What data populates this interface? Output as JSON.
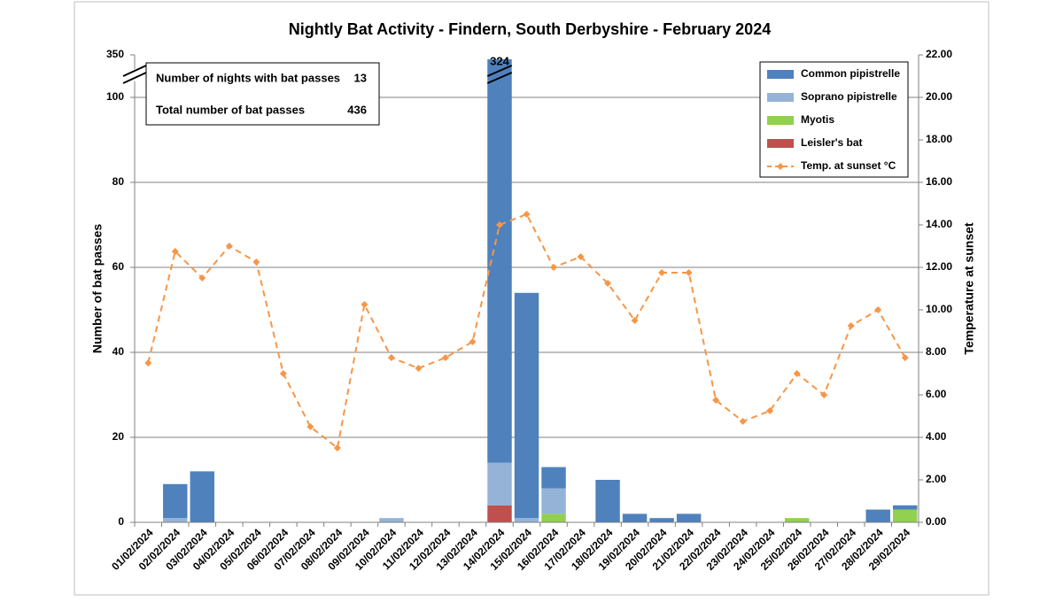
{
  "chart_data": {
    "type": "bar",
    "stacked": true,
    "title": "Nightly Bat Activity - Findern, South Derbyshire - February 2024",
    "y_label": "Number of bat passes",
    "y2_label": "Temperature at sunset",
    "categories": [
      "01/02/2024",
      "02/02/2024",
      "03/02/2024",
      "04/02/2024",
      "05/02/2024",
      "06/02/2024",
      "07/02/2024",
      "08/02/2024",
      "09/02/2024",
      "10/02/2024",
      "11/02/2024",
      "12/02/2024",
      "13/02/2024",
      "14/02/2024",
      "15/02/2024",
      "16/02/2024",
      "17/02/2024",
      "18/02/2024",
      "19/02/2024",
      "20/02/2024",
      "21/02/2024",
      "22/02/2024",
      "23/02/2024",
      "24/02/2024",
      "25/02/2024",
      "26/02/2024",
      "27/02/2024",
      "28/02/2024",
      "29/02/2024"
    ],
    "series": [
      {
        "name": "Common pipistrelle",
        "color": "#4f81bd",
        "values": [
          0,
          8,
          12,
          0,
          0,
          0,
          0,
          0,
          0,
          0,
          0,
          0,
          0,
          310,
          53,
          5,
          0,
          10,
          2,
          1,
          2,
          0,
          0,
          0,
          0,
          0,
          0,
          3,
          1
        ]
      },
      {
        "name": "Soprano pipistrelle",
        "color": "#95b3d7",
        "values": [
          0,
          1,
          0,
          0,
          0,
          0,
          0,
          0,
          0,
          1,
          0,
          0,
          0,
          10,
          1,
          6,
          0,
          0,
          0,
          0,
          0,
          0,
          0,
          0,
          0,
          0,
          0,
          0,
          0
        ]
      },
      {
        "name": "Myotis",
        "color": "#92d050",
        "values": [
          0,
          0,
          0,
          0,
          0,
          0,
          0,
          0,
          0,
          0,
          0,
          0,
          0,
          0,
          0,
          2,
          0,
          0,
          0,
          0,
          0,
          0,
          0,
          0,
          1,
          0,
          0,
          0,
          3
        ]
      },
      {
        "name": "Leisler's bat",
        "color": "#c0504d",
        "values": [
          0,
          0,
          0,
          0,
          0,
          0,
          0,
          0,
          0,
          0,
          0,
          0,
          0,
          4,
          0,
          0,
          0,
          0,
          0,
          0,
          0,
          0,
          0,
          0,
          0,
          0,
          0,
          0,
          0
        ]
      },
      {
        "name": "Temp. at sunset °C",
        "color": "#f79646",
        "axis": "y2",
        "type": "line",
        "dashed": true,
        "marker": "diamond",
        "values": [
          7.5,
          12.75,
          11.5,
          13.0,
          12.25,
          7.0,
          4.5,
          3.5,
          10.25,
          7.75,
          7.25,
          7.75,
          8.5,
          14.0,
          14.5,
          12.0,
          12.5,
          11.25,
          9.5,
          11.75,
          11.75,
          5.75,
          4.75,
          5.25,
          7.0,
          6.0,
          9.25,
          10.0,
          7.75
        ]
      }
    ],
    "ylim": [
      0,
      350
    ],
    "ybreak": [
      100,
      350
    ],
    "yticks": [
      0,
      20,
      40,
      60,
      80,
      100,
      350
    ],
    "y2lim": [
      0,
      22
    ],
    "y2ticks": [
      {
        "value": 0,
        "label": "0.00"
      },
      {
        "value": 2,
        "label": "2.00"
      },
      {
        "value": 4,
        "label": "4.00"
      },
      {
        "value": 6,
        "label": "6.00"
      },
      {
        "value": 8,
        "label": "8.00"
      },
      {
        "value": 10,
        "label": "10.00"
      },
      {
        "value": 12,
        "label": "12.00"
      },
      {
        "value": 14,
        "label": "14.00"
      },
      {
        "value": 16,
        "label": "16.00"
      },
      {
        "value": 18,
        "label": "18.00"
      },
      {
        "value": 20,
        "label": "20.00"
      },
      {
        "value": 22,
        "label": "22.00"
      }
    ],
    "grid": true,
    "legend": "top-right",
    "stack_label": {
      "index": 13,
      "value": 324
    },
    "info_box": [
      {
        "label": "Number of nights with bat passes",
        "value": 13
      },
      {
        "label": "Total number of bat passes",
        "value": 436
      }
    ]
  }
}
